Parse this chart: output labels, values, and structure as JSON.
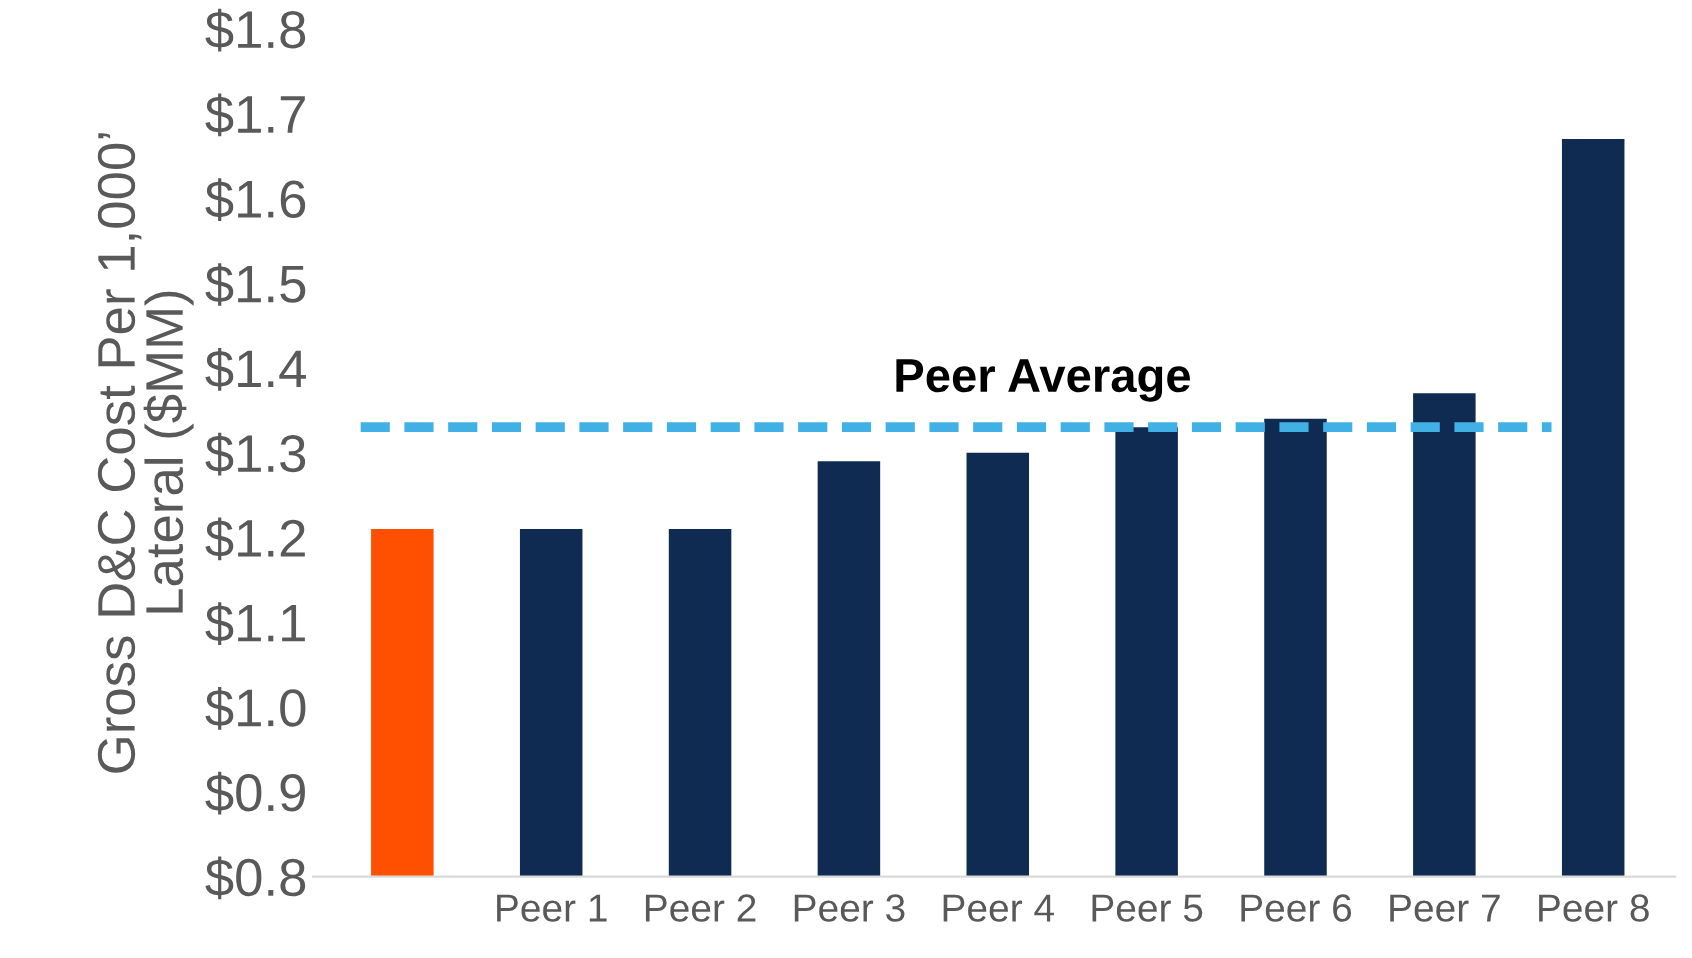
{
  "chart_data": {
    "type": "bar",
    "ylabel": "Gross D&C Cost Per 1,000’\nLateral ($MM)",
    "categories": [
      null,
      "Peer 1",
      "Peer 2",
      "Peer 3",
      "Peer 4",
      "Peer 5",
      "Peer 6",
      "Peer 7",
      "Peer 8"
    ],
    "values": [
      1.21,
      1.21,
      1.21,
      1.29,
      1.3,
      1.33,
      1.34,
      1.37,
      1.67
    ],
    "colors": [
      "#ff4f00",
      "#0f2b51",
      "#0f2b51",
      "#0f2b51",
      "#0f2b51",
      "#0f2b51",
      "#0f2b51",
      "#0f2b51",
      "#0f2b51"
    ],
    "ylim": [
      0.8,
      1.8
    ],
    "yticks": [
      {
        "value": 0.8,
        "label": "$0.8"
      },
      {
        "value": 0.9,
        "label": "$0.9"
      },
      {
        "value": 1.0,
        "label": "$1.0"
      },
      {
        "value": 1.1,
        "label": "$1.1"
      },
      {
        "value": 1.2,
        "label": "$1.2"
      },
      {
        "value": 1.3,
        "label": "$1.3"
      },
      {
        "value": 1.4,
        "label": "$1.4"
      },
      {
        "value": 1.5,
        "label": "$1.5"
      },
      {
        "value": 1.6,
        "label": "$1.6"
      },
      {
        "value": 1.7,
        "label": "$1.7"
      },
      {
        "value": 1.8,
        "label": "$1.8"
      }
    ],
    "ref_lines": [
      {
        "axis": "y",
        "value": 1.33,
        "label": "Peer Average",
        "color": "#41b0e4",
        "line_style": "dashed"
      }
    ],
    "grid": false
  }
}
